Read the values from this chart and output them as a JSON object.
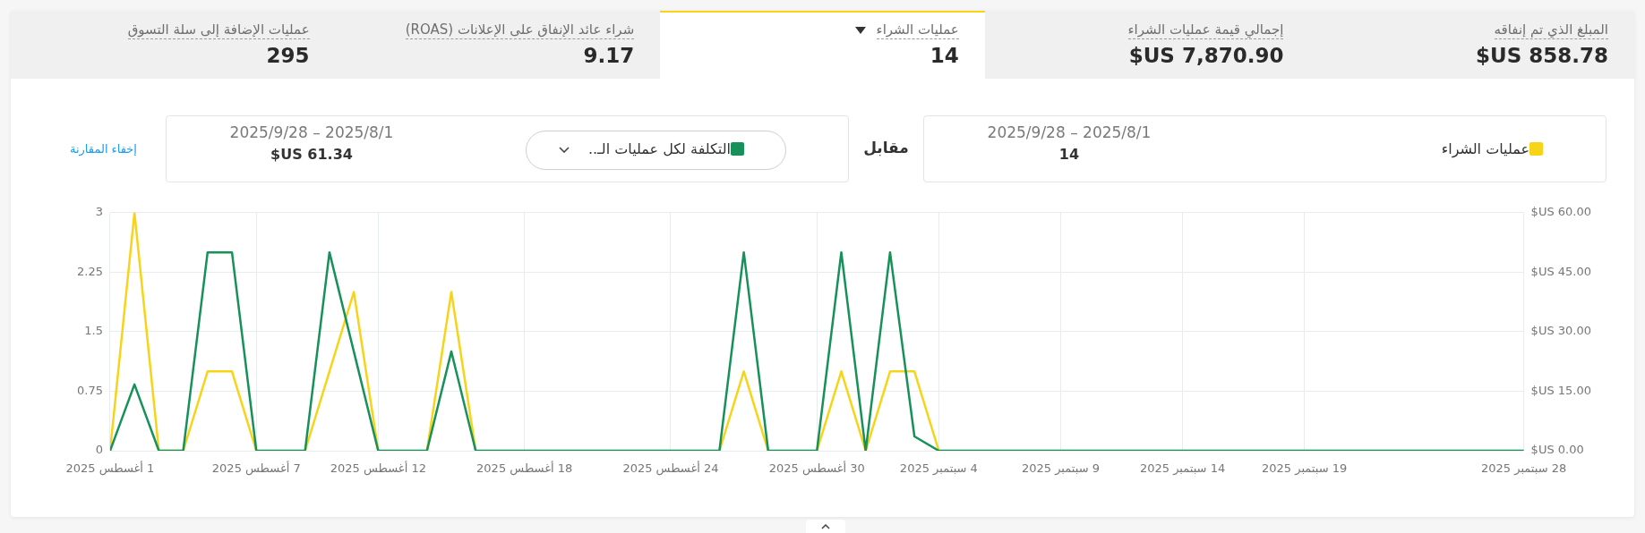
{
  "chart_data": [
    {
      "type": "other",
      "annotations": [
        "المبلغ الذي تم إنفاقه",
        "858.78 US$",
        "إجمالي قيمة عمليات الشراء",
        "7,870.90 US$",
        "عمليات الشراء",
        "14",
        "شراء عائد الإنفاق على الإعلانات (ROAS)",
        "9.17",
        "عمليات الإضافة إلى سلة التسوق",
        "295"
      ]
    },
    {
      "type": "line",
      "x": [
        "2025-08-01",
        "2025-08-02",
        "2025-08-03",
        "2025-08-04",
        "2025-08-05",
        "2025-08-06",
        "2025-08-07",
        "2025-08-08",
        "2025-08-09",
        "2025-08-10",
        "2025-08-11",
        "2025-08-12",
        "2025-08-13",
        "2025-08-14",
        "2025-08-15",
        "2025-08-16",
        "2025-08-17",
        "2025-08-18",
        "2025-08-19",
        "2025-08-20",
        "2025-08-21",
        "2025-08-22",
        "2025-08-23",
        "2025-08-24",
        "2025-08-25",
        "2025-08-26",
        "2025-08-27",
        "2025-08-28",
        "2025-08-29",
        "2025-08-30",
        "2025-08-31",
        "2025-09-01",
        "2025-09-02",
        "2025-09-03",
        "2025-09-04",
        "2025-09-05",
        "2025-09-06",
        "2025-09-07",
        "2025-09-08",
        "2025-09-09",
        "2025-09-10",
        "2025-09-11",
        "2025-09-12",
        "2025-09-13",
        "2025-09-14",
        "2025-09-15",
        "2025-09-16",
        "2025-09-17",
        "2025-09-18",
        "2025-09-19",
        "2025-09-20",
        "2025-09-21",
        "2025-09-22",
        "2025-09-23",
        "2025-09-24",
        "2025-09-25",
        "2025-09-26",
        "2025-09-27",
        "2025-09-28"
      ],
      "series": [
        {
          "name": "عمليات الشراء",
          "color": "#f7d417",
          "values": [
            0,
            3,
            0,
            0,
            1,
            1,
            0,
            null,
            0,
            1,
            2,
            0,
            null,
            0,
            2,
            0,
            null,
            null,
            null,
            null,
            null,
            null,
            null,
            null,
            null,
            0,
            1,
            0,
            null,
            0,
            1,
            0,
            1,
            1,
            0,
            null,
            null,
            null,
            null,
            null,
            null,
            null,
            null,
            null,
            null,
            null,
            null,
            null,
            null,
            null,
            null,
            null,
            null,
            null,
            null,
            null,
            null,
            null,
            null
          ]
        },
        {
          "name": "التكلفة لكل عمليات الـ..",
          "color": "#16915a",
          "axis": "y2",
          "values": [
            0,
            16.7,
            0,
            0,
            50,
            50,
            0,
            0,
            0,
            50,
            25,
            0,
            0,
            0,
            25,
            0,
            0,
            0,
            0,
            0,
            0,
            0,
            0,
            0,
            0,
            0,
            50,
            0,
            0,
            0,
            50,
            0,
            50,
            3.6,
            0,
            0,
            0,
            0,
            0,
            0,
            0,
            0,
            0,
            0,
            0,
            0,
            0,
            0,
            0,
            0,
            0,
            0,
            0,
            0,
            0,
            0,
            0,
            0,
            0
          ]
        }
      ],
      "xlim": [
        "2025-08-01",
        "2025-09-28"
      ],
      "xticks": [
        {
          "value": "2025-08-01",
          "label": "1 أغسطس 2025"
        },
        {
          "value": "2025-08-07",
          "label": "7 أغسطس 2025"
        },
        {
          "value": "2025-08-12",
          "label": "12 أغسطس 2025"
        },
        {
          "value": "2025-08-18",
          "label": "18 أغسطس 2025"
        },
        {
          "value": "2025-08-24",
          "label": "24 أغسطس 2025"
        },
        {
          "value": "2025-08-30",
          "label": "30 أغسطس 2025"
        },
        {
          "value": "2025-09-04",
          "label": "4 سبتمبر 2025"
        },
        {
          "value": "2025-09-09",
          "label": "9 سبتمبر 2025"
        },
        {
          "value": "2025-09-14",
          "label": "14 سبتمبر 2025"
        },
        {
          "value": "2025-09-19",
          "label": "19 سبتمبر 2025"
        },
        {
          "value": "2025-09-28",
          "label": "28 سبتمبر 2025"
        }
      ],
      "ylim": [
        0,
        3
      ],
      "yticks": [
        0,
        0.75,
        1.5,
        2.25,
        3
      ],
      "y2lim": [
        0,
        60
      ],
      "y2ticks": [
        {
          "value": 0,
          "label": "0.00 US$"
        },
        {
          "value": 15,
          "label": "15.00 US$"
        },
        {
          "value": 30,
          "label": "30.00 US$"
        },
        {
          "value": 45,
          "label": "45.00 US$"
        },
        {
          "value": 60,
          "label": "60.00 US$"
        }
      ],
      "annotations": [
        "2025/8/1 – 2025/9/28",
        "14",
        "مقابل",
        "2025/8/1 – 2025/9/28",
        "61.34 US$",
        "إخفاء المقارنة"
      ],
      "legend": "top",
      "grid": true
    }
  ]
}
